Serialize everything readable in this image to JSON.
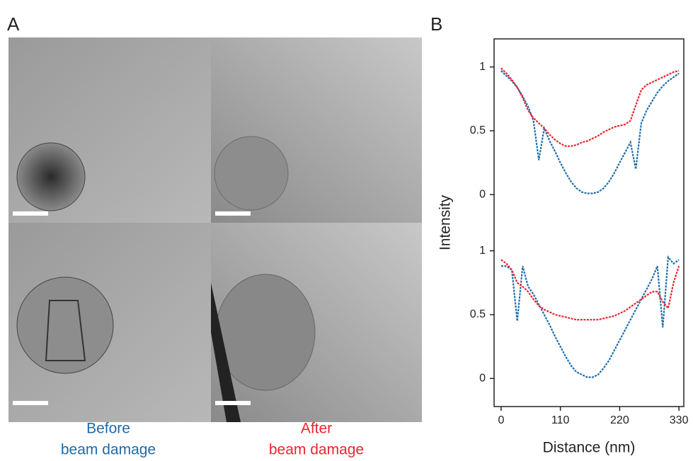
{
  "panel_labels": [
    "A",
    "B"
  ],
  "images": {
    "captions": [
      {
        "lines": [
          "Before",
          "beam damage"
        ],
        "color": "#1f6aa8"
      },
      {
        "lines": [
          "After",
          "beam damage"
        ],
        "color": "#e8262e"
      }
    ]
  },
  "chart_data": [
    {
      "type": "line",
      "ylabel": "Intensity",
      "x": [
        0,
        10,
        20,
        30,
        40,
        50,
        60,
        70,
        80,
        90,
        100,
        110,
        120,
        130,
        140,
        150,
        160,
        170,
        180,
        190,
        200,
        210,
        220,
        230,
        240,
        250,
        260,
        270,
        280,
        290,
        300,
        310,
        320,
        330
      ],
      "series": [
        {
          "color": "#1f6ea8",
          "values": [
            0.97,
            0.93,
            0.89,
            0.84,
            0.77,
            0.69,
            0.58,
            0.27,
            0.52,
            0.42,
            0.34,
            0.25,
            0.17,
            0.1,
            0.05,
            0.02,
            0.01,
            0.01,
            0.02,
            0.05,
            0.1,
            0.17,
            0.25,
            0.33,
            0.41,
            0.2,
            0.56,
            0.66,
            0.73,
            0.8,
            0.85,
            0.89,
            0.92,
            0.95
          ]
        },
        {
          "color": "#e8262e",
          "values": [
            0.99,
            0.95,
            0.9,
            0.84,
            0.76,
            0.66,
            0.6,
            0.56,
            0.52,
            0.47,
            0.43,
            0.4,
            0.38,
            0.38,
            0.39,
            0.41,
            0.42,
            0.44,
            0.46,
            0.49,
            0.51,
            0.53,
            0.54,
            0.55,
            0.58,
            0.7,
            0.82,
            0.86,
            0.88,
            0.9,
            0.92,
            0.94,
            0.96,
            0.97
          ]
        }
      ],
      "xlim": [
        -13,
        339
      ],
      "ylim": [
        -0.22,
        1.22
      ],
      "yticks": [
        0,
        0.5,
        1
      ]
    },
    {
      "type": "line",
      "xlabel": "Distance (nm)",
      "x": [
        0,
        10,
        20,
        30,
        40,
        50,
        60,
        70,
        80,
        90,
        100,
        110,
        120,
        130,
        140,
        150,
        160,
        170,
        180,
        190,
        200,
        210,
        220,
        230,
        240,
        250,
        260,
        270,
        280,
        290,
        300,
        310,
        320,
        330
      ],
      "series": [
        {
          "color": "#1f6ea8",
          "values": [
            0.88,
            0.88,
            0.85,
            0.45,
            0.88,
            0.72,
            0.66,
            0.58,
            0.5,
            0.42,
            0.33,
            0.25,
            0.17,
            0.1,
            0.05,
            0.03,
            0.01,
            0.01,
            0.03,
            0.08,
            0.14,
            0.22,
            0.3,
            0.38,
            0.46,
            0.54,
            0.62,
            0.7,
            0.78,
            0.88,
            0.4,
            0.95,
            0.9,
            0.93
          ]
        },
        {
          "color": "#e8262e",
          "values": [
            0.93,
            0.9,
            0.85,
            0.75,
            0.72,
            0.68,
            0.62,
            0.57,
            0.54,
            0.52,
            0.5,
            0.49,
            0.48,
            0.47,
            0.46,
            0.46,
            0.46,
            0.46,
            0.46,
            0.47,
            0.48,
            0.49,
            0.51,
            0.53,
            0.56,
            0.59,
            0.62,
            0.65,
            0.68,
            0.68,
            0.6,
            0.55,
            0.75,
            0.88
          ]
        }
      ],
      "xlim": [
        -13,
        339
      ],
      "ylim": [
        -0.22,
        1.22
      ],
      "xticks": [
        0,
        110,
        220,
        330
      ],
      "yticks": [
        0,
        0.5,
        1
      ]
    }
  ]
}
